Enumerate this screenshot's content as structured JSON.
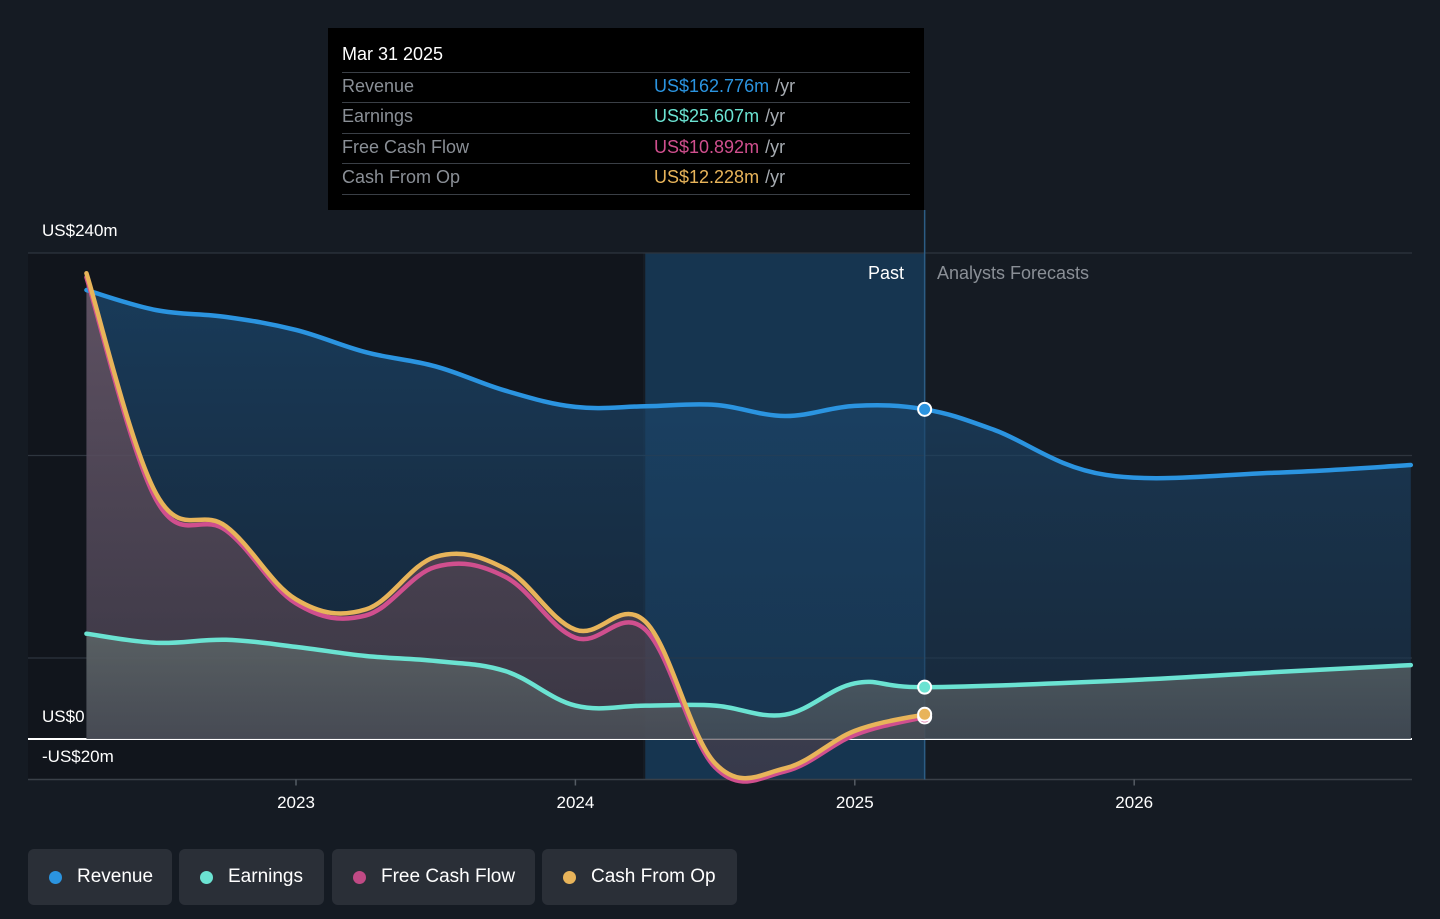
{
  "tooltip": {
    "date": "Mar 31 2025",
    "rows": [
      {
        "label": "Revenue",
        "value": "US$162.776m",
        "unit": "/yr",
        "color": "#2b94e0"
      },
      {
        "label": "Earnings",
        "value": "US$25.607m",
        "unit": "/yr",
        "color": "#6be3d2"
      },
      {
        "label": "Free Cash Flow",
        "value": "US$10.892m",
        "unit": "/yr",
        "color": "#d04f8e"
      },
      {
        "label": "Cash From Op",
        "value": "US$12.228m",
        "unit": "/yr",
        "color": "#e8b45a"
      }
    ]
  },
  "zones": {
    "past": "Past",
    "forecast": "Analysts Forecasts"
  },
  "legend": [
    {
      "label": "Revenue",
      "color": "#2b94e0"
    },
    {
      "label": "Earnings",
      "color": "#6be3d2"
    },
    {
      "label": "Free Cash Flow",
      "color": "#d04f8e"
    },
    {
      "label": "Cash From Op",
      "color": "#e8b45a"
    }
  ],
  "chart_data": {
    "type": "area",
    "title": "",
    "xlabel": "",
    "ylabel": "",
    "ylim": [
      -20,
      240
    ],
    "xlim": [
      2022.05,
      2026.99
    ],
    "y_tick_labels": [
      "US$240m",
      "US$0",
      "-US$20m"
    ],
    "x_tick_labels": [
      "2023",
      "2024",
      "2025",
      "2026"
    ],
    "x_ticks": [
      2023,
      2024,
      2025,
      2026
    ],
    "grid": true,
    "highlight_start": 2024.25,
    "past_end": 2025.25,
    "series": [
      {
        "name": "Revenue",
        "color": "#2b94e0",
        "x": [
          2022.25,
          2022.5,
          2022.75,
          2023.0,
          2023.25,
          2023.5,
          2023.75,
          2024.0,
          2024.25,
          2024.5,
          2024.75,
          2025.0,
          2025.25,
          2025.5,
          2025.9,
          2026.5,
          2026.99
        ],
        "y": [
          221.7,
          211.8,
          208.4,
          202.0,
          191.0,
          184.0,
          172.0,
          164.0,
          164.3,
          165.0,
          159.5,
          164.5,
          162.8,
          152.6,
          130.4,
          131.5,
          135.3
        ]
      },
      {
        "name": "Earnings",
        "color": "#6be3d2",
        "x": [
          2022.25,
          2022.5,
          2022.75,
          2023.0,
          2023.25,
          2023.5,
          2023.75,
          2024.0,
          2024.25,
          2024.5,
          2024.75,
          2025.0,
          2025.25,
          2025.9,
          2026.5,
          2026.99
        ],
        "y": [
          52.0,
          47.5,
          49.0,
          45.5,
          41.0,
          38.5,
          33.5,
          16.5,
          16.5,
          16.5,
          12.0,
          27.5,
          25.6,
          28.5,
          33.0,
          36.5
        ]
      },
      {
        "name": "Free Cash Flow",
        "color": "#d04f8e",
        "x": [
          2022.25,
          2022.5,
          2022.75,
          2023.0,
          2023.25,
          2023.5,
          2023.75,
          2024.0,
          2024.25,
          2024.5,
          2024.75,
          2025.0,
          2025.25
        ],
        "y": [
          228.0,
          118.0,
          103.0,
          67.0,
          61.0,
          85.0,
          80.0,
          50.0,
          54.0,
          -14.0,
          -16.0,
          2.0,
          10.9
        ]
      },
      {
        "name": "Cash From Op",
        "color": "#e8b45a",
        "x": [
          2022.25,
          2022.5,
          2022.75,
          2023.0,
          2023.25,
          2023.5,
          2023.75,
          2024.0,
          2024.25,
          2024.5,
          2024.75,
          2025.0,
          2025.25
        ],
        "y": [
          230.0,
          121.0,
          105.0,
          69.0,
          64.0,
          90.0,
          84.0,
          54.0,
          58.0,
          -12.0,
          -14.5,
          4.0,
          12.2
        ]
      }
    ]
  }
}
